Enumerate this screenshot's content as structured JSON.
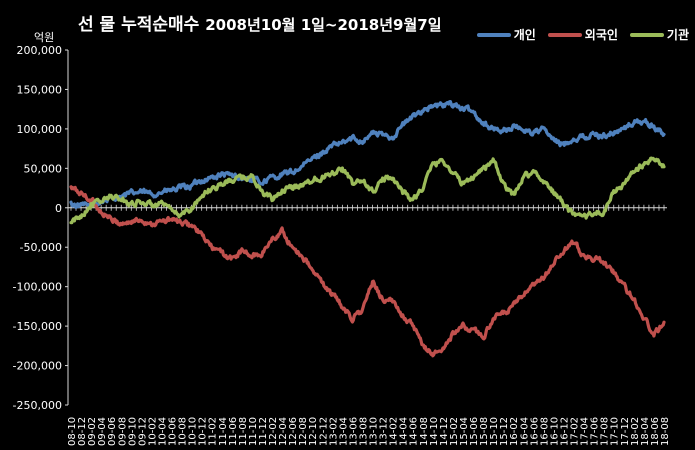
{
  "chart_data": {
    "type": "line",
    "title": "선 물 누적순매수",
    "subtitle": "2008년10월 1일~2018년9월7일",
    "ylabel": "억원",
    "ylim": [
      -250000,
      200000
    ],
    "yticks": [
      "-250,000",
      "-200,000",
      "-150,000",
      "-100,000",
      "-50,000",
      "0",
      "50,000",
      "100,000",
      "150,000",
      "200,000"
    ],
    "ytick_values": [
      -250000,
      -200000,
      -150000,
      -100000,
      -50000,
      0,
      50000,
      100000,
      150000,
      200000
    ],
    "x": [
      "08-10",
      "08-12",
      "09-02",
      "09-04",
      "09-06",
      "09-08",
      "09-10",
      "09-12",
      "10-02",
      "10-04",
      "10-06",
      "10-08",
      "10-10",
      "10-12",
      "11-02",
      "11-04",
      "11-06",
      "11-08",
      "11-10",
      "11-12",
      "12-02",
      "12-04",
      "12-06",
      "12-08",
      "12-10",
      "12-12",
      "13-02",
      "13-04",
      "13-06",
      "13-08",
      "13-10",
      "13-12",
      "14-02",
      "14-04",
      "14-06",
      "14-08",
      "14-10",
      "14-12",
      "15-02",
      "15-04",
      "15-06",
      "15-08",
      "15-10",
      "15-12",
      "16-02",
      "16-04",
      "16-06",
      "16-08",
      "16-10",
      "16-12",
      "17-02",
      "17-04",
      "17-06",
      "17-08",
      "17-10",
      "17-12",
      "18-02",
      "18-04",
      "18-06",
      "18-08"
    ],
    "legend_position": "top-right",
    "grid": false,
    "series": [
      {
        "name": "개인",
        "color": "#4F81BD",
        "values": [
          5000,
          2000,
          3000,
          8000,
          12000,
          15000,
          18000,
          20000,
          17000,
          20000,
          22000,
          25000,
          28000,
          35000,
          38000,
          42000,
          40000,
          38000,
          35000,
          33000,
          38000,
          42000,
          45000,
          52000,
          62000,
          70000,
          78000,
          82000,
          88000,
          85000,
          95000,
          92000,
          90000,
          105000,
          115000,
          125000,
          128000,
          130000,
          132000,
          125000,
          122000,
          108000,
          100000,
          98000,
          102000,
          100000,
          95000,
          100000,
          85000,
          80000,
          88000,
          90000,
          92000,
          92000,
          95000,
          100000,
          108000,
          110000,
          102000,
          93000
        ]
      },
      {
        "name": "외국인",
        "color": "#C0504D",
        "values": [
          25000,
          18000,
          10000,
          -5000,
          -15000,
          -20000,
          -18000,
          -15000,
          -20000,
          -18000,
          -15000,
          -20000,
          -22000,
          -35000,
          -50000,
          -58000,
          -65000,
          -55000,
          -62000,
          -58000,
          -40000,
          -30000,
          -50000,
          -60000,
          -80000,
          -95000,
          -110000,
          -125000,
          -140000,
          -130000,
          -95000,
          -115000,
          -120000,
          -135000,
          -150000,
          -175000,
          -185000,
          -180000,
          -160000,
          -150000,
          -155000,
          -165000,
          -140000,
          -135000,
          -125000,
          -110000,
          -100000,
          -90000,
          -70000,
          -55000,
          -45000,
          -60000,
          -65000,
          -70000,
          -80000,
          -100000,
          -115000,
          -140000,
          -160000,
          -145000
        ]
      },
      {
        "name": "기관",
        "color": "#9BBB59",
        "values": [
          -20000,
          -10000,
          5000,
          8000,
          15000,
          10000,
          5000,
          8000,
          3000,
          5000,
          -5000,
          -10000,
          0,
          15000,
          25000,
          30000,
          35000,
          38000,
          40000,
          20000,
          10000,
          22000,
          25000,
          30000,
          35000,
          40000,
          45000,
          50000,
          30000,
          35000,
          20000,
          35000,
          40000,
          20000,
          10000,
          25000,
          55000,
          60000,
          45000,
          30000,
          40000,
          50000,
          60000,
          30000,
          15000,
          40000,
          45000,
          35000,
          20000,
          5000,
          -10000,
          -15000,
          -5000,
          -8000,
          20000,
          30000,
          45000,
          55000,
          62000,
          52000
        ]
      }
    ]
  }
}
